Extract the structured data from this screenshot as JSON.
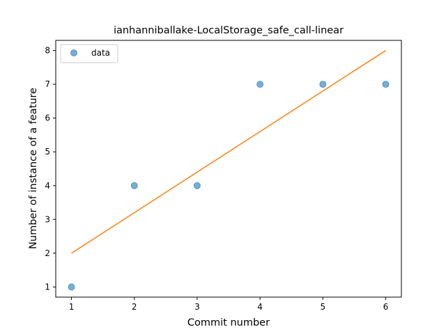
{
  "chart_data": {
    "type": "scatter",
    "title": "ianhanniballake-LocalStorage_safe_call-linear",
    "xlabel": "Commit number",
    "ylabel": "Number of instance of a feature",
    "xlim": [
      0.75,
      6.25
    ],
    "ylim": [
      0.7,
      8.3
    ],
    "xticks": [
      1,
      2,
      3,
      4,
      5,
      6
    ],
    "yticks": [
      1,
      2,
      3,
      4,
      5,
      6,
      7,
      8
    ],
    "grid": false,
    "legend_position": "top-left",
    "series": [
      {
        "name": "data",
        "kind": "scatter",
        "color": "#1f77b4",
        "x": [
          1,
          2,
          3,
          4,
          5,
          6
        ],
        "y": [
          1,
          4,
          4,
          7,
          7,
          7
        ]
      },
      {
        "kind": "line",
        "color": "#ff7f0e",
        "x": [
          1,
          6
        ],
        "y": [
          2,
          8
        ]
      }
    ]
  }
}
